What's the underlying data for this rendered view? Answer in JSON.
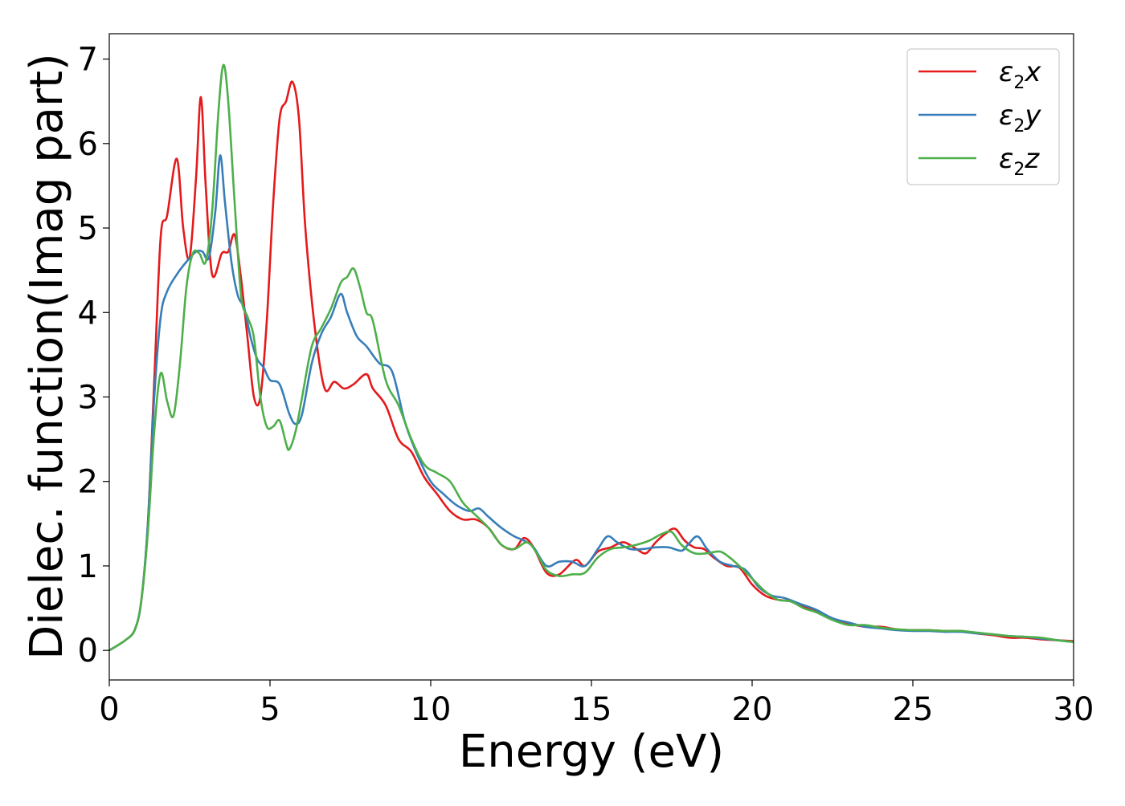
{
  "chart_data": {
    "type": "line",
    "title": "",
    "xlabel": "Energy (eV)",
    "ylabel": "Dielec. function(Imag part)",
    "xlim": [
      0,
      30
    ],
    "ylim": [
      -0.35,
      7.3
    ],
    "xticks": [
      0,
      5,
      10,
      15,
      20,
      25,
      30
    ],
    "yticks": [
      0,
      1,
      2,
      3,
      4,
      5,
      6,
      7
    ],
    "grid": false,
    "legend_position": "top-right",
    "series": [
      {
        "name": "ε2x",
        "legend_main": "ε",
        "legend_sub": "2",
        "legend_suffix": "x",
        "color": "#e41a1c",
        "points": [
          [
            0,
            0
          ],
          [
            0.5,
            0.12
          ],
          [
            0.8,
            0.25
          ],
          [
            1.0,
            0.6
          ],
          [
            1.2,
            1.5
          ],
          [
            1.4,
            3.2
          ],
          [
            1.6,
            4.9
          ],
          [
            1.8,
            5.15
          ],
          [
            2.1,
            5.82
          ],
          [
            2.3,
            5.0
          ],
          [
            2.5,
            4.65
          ],
          [
            2.7,
            5.6
          ],
          [
            2.85,
            6.55
          ],
          [
            3.0,
            5.5
          ],
          [
            3.2,
            4.45
          ],
          [
            3.5,
            4.7
          ],
          [
            3.7,
            4.72
          ],
          [
            3.9,
            4.92
          ],
          [
            4.1,
            4.4
          ],
          [
            4.3,
            3.7
          ],
          [
            4.5,
            3.0
          ],
          [
            4.7,
            3.0
          ],
          [
            4.9,
            3.9
          ],
          [
            5.1,
            5.3
          ],
          [
            5.3,
            6.3
          ],
          [
            5.5,
            6.5
          ],
          [
            5.7,
            6.73
          ],
          [
            5.9,
            6.3
          ],
          [
            6.1,
            5.0
          ],
          [
            6.4,
            3.8
          ],
          [
            6.7,
            3.1
          ],
          [
            7.0,
            3.18
          ],
          [
            7.3,
            3.1
          ],
          [
            7.6,
            3.15
          ],
          [
            8.0,
            3.27
          ],
          [
            8.2,
            3.1
          ],
          [
            8.6,
            2.9
          ],
          [
            9.0,
            2.5
          ],
          [
            9.4,
            2.35
          ],
          [
            9.8,
            2.05
          ],
          [
            10.2,
            1.85
          ],
          [
            10.6,
            1.65
          ],
          [
            11.0,
            1.55
          ],
          [
            11.4,
            1.55
          ],
          [
            11.8,
            1.45
          ],
          [
            12.2,
            1.25
          ],
          [
            12.6,
            1.2
          ],
          [
            12.9,
            1.33
          ],
          [
            13.2,
            1.22
          ],
          [
            13.6,
            0.92
          ],
          [
            14.0,
            0.9
          ],
          [
            14.5,
            1.07
          ],
          [
            14.8,
            1.0
          ],
          [
            15.2,
            1.17
          ],
          [
            15.6,
            1.22
          ],
          [
            16.0,
            1.28
          ],
          [
            16.4,
            1.2
          ],
          [
            16.7,
            1.15
          ],
          [
            17.0,
            1.28
          ],
          [
            17.3,
            1.38
          ],
          [
            17.6,
            1.44
          ],
          [
            17.9,
            1.3
          ],
          [
            18.2,
            1.22
          ],
          [
            18.5,
            1.2
          ],
          [
            18.8,
            1.1
          ],
          [
            19.2,
            1.0
          ],
          [
            19.6,
            0.98
          ],
          [
            20.0,
            0.78
          ],
          [
            20.4,
            0.65
          ],
          [
            20.8,
            0.6
          ],
          [
            21.2,
            0.58
          ],
          [
            21.6,
            0.52
          ],
          [
            22.0,
            0.47
          ],
          [
            22.5,
            0.38
          ],
          [
            23.0,
            0.32
          ],
          [
            23.5,
            0.28
          ],
          [
            24.0,
            0.28
          ],
          [
            24.5,
            0.25
          ],
          [
            25.0,
            0.24
          ],
          [
            25.5,
            0.24
          ],
          [
            26.0,
            0.23
          ],
          [
            26.5,
            0.23
          ],
          [
            27.0,
            0.2
          ],
          [
            27.5,
            0.18
          ],
          [
            28.0,
            0.15
          ],
          [
            28.5,
            0.15
          ],
          [
            29.0,
            0.13
          ],
          [
            29.5,
            0.12
          ],
          [
            30.0,
            0.11
          ]
        ]
      },
      {
        "name": "ε2y",
        "legend_main": "ε",
        "legend_sub": "2",
        "legend_suffix": "y",
        "color": "#377eb8",
        "points": [
          [
            0,
            0
          ],
          [
            0.5,
            0.12
          ],
          [
            0.8,
            0.25
          ],
          [
            1.0,
            0.6
          ],
          [
            1.2,
            1.5
          ],
          [
            1.4,
            3.0
          ],
          [
            1.6,
            3.95
          ],
          [
            1.8,
            4.25
          ],
          [
            2.1,
            4.45
          ],
          [
            2.4,
            4.6
          ],
          [
            2.7,
            4.72
          ],
          [
            2.9,
            4.72
          ],
          [
            3.1,
            4.65
          ],
          [
            3.3,
            5.2
          ],
          [
            3.45,
            5.86
          ],
          [
            3.6,
            5.3
          ],
          [
            3.8,
            4.6
          ],
          [
            4.0,
            4.2
          ],
          [
            4.2,
            4.05
          ],
          [
            4.4,
            3.7
          ],
          [
            4.6,
            3.45
          ],
          [
            4.8,
            3.35
          ],
          [
            5.0,
            3.2
          ],
          [
            5.3,
            3.15
          ],
          [
            5.6,
            2.8
          ],
          [
            5.8,
            2.68
          ],
          [
            6.0,
            2.8
          ],
          [
            6.3,
            3.4
          ],
          [
            6.6,
            3.75
          ],
          [
            6.9,
            3.95
          ],
          [
            7.2,
            4.22
          ],
          [
            7.4,
            4.0
          ],
          [
            7.7,
            3.72
          ],
          [
            8.0,
            3.6
          ],
          [
            8.4,
            3.4
          ],
          [
            8.8,
            3.3
          ],
          [
            9.2,
            2.7
          ],
          [
            9.6,
            2.3
          ],
          [
            10.0,
            2.0
          ],
          [
            10.4,
            1.85
          ],
          [
            10.8,
            1.72
          ],
          [
            11.2,
            1.65
          ],
          [
            11.5,
            1.68
          ],
          [
            11.8,
            1.58
          ],
          [
            12.2,
            1.45
          ],
          [
            12.6,
            1.35
          ],
          [
            12.9,
            1.3
          ],
          [
            13.2,
            1.22
          ],
          [
            13.6,
            1.0
          ],
          [
            14.0,
            1.05
          ],
          [
            14.4,
            1.05
          ],
          [
            14.8,
            1.0
          ],
          [
            15.2,
            1.2
          ],
          [
            15.5,
            1.35
          ],
          [
            15.8,
            1.28
          ],
          [
            16.2,
            1.2
          ],
          [
            16.6,
            1.2
          ],
          [
            17.0,
            1.22
          ],
          [
            17.4,
            1.22
          ],
          [
            17.8,
            1.18
          ],
          [
            18.0,
            1.25
          ],
          [
            18.3,
            1.35
          ],
          [
            18.6,
            1.2
          ],
          [
            19.0,
            1.05
          ],
          [
            19.4,
            1.0
          ],
          [
            19.8,
            0.95
          ],
          [
            20.2,
            0.75
          ],
          [
            20.6,
            0.65
          ],
          [
            21.0,
            0.62
          ],
          [
            21.5,
            0.55
          ],
          [
            22.0,
            0.48
          ],
          [
            22.5,
            0.38
          ],
          [
            23.0,
            0.33
          ],
          [
            23.5,
            0.28
          ],
          [
            24.0,
            0.26
          ],
          [
            24.5,
            0.24
          ],
          [
            25.0,
            0.23
          ],
          [
            25.5,
            0.23
          ],
          [
            26.0,
            0.22
          ],
          [
            26.5,
            0.22
          ],
          [
            27.0,
            0.2
          ],
          [
            27.5,
            0.19
          ],
          [
            28.0,
            0.17
          ],
          [
            28.5,
            0.16
          ],
          [
            29.0,
            0.14
          ],
          [
            29.5,
            0.12
          ],
          [
            30.0,
            0.1
          ]
        ]
      },
      {
        "name": "ε2z",
        "legend_main": "ε",
        "legend_sub": "2",
        "legend_suffix": "z",
        "color": "#4daf4a",
        "points": [
          [
            0,
            0
          ],
          [
            0.5,
            0.12
          ],
          [
            0.8,
            0.25
          ],
          [
            1.0,
            0.6
          ],
          [
            1.2,
            1.4
          ],
          [
            1.4,
            2.6
          ],
          [
            1.6,
            3.28
          ],
          [
            1.8,
            2.95
          ],
          [
            2.0,
            2.78
          ],
          [
            2.2,
            3.4
          ],
          [
            2.4,
            4.3
          ],
          [
            2.6,
            4.7
          ],
          [
            2.8,
            4.7
          ],
          [
            3.0,
            4.6
          ],
          [
            3.2,
            5.2
          ],
          [
            3.4,
            6.4
          ],
          [
            3.55,
            6.93
          ],
          [
            3.7,
            6.5
          ],
          [
            3.9,
            5.3
          ],
          [
            4.1,
            4.2
          ],
          [
            4.3,
            3.95
          ],
          [
            4.5,
            3.7
          ],
          [
            4.7,
            3.0
          ],
          [
            4.9,
            2.65
          ],
          [
            5.1,
            2.65
          ],
          [
            5.3,
            2.72
          ],
          [
            5.5,
            2.45
          ],
          [
            5.6,
            2.38
          ],
          [
            5.8,
            2.6
          ],
          [
            6.0,
            3.0
          ],
          [
            6.3,
            3.6
          ],
          [
            6.6,
            3.82
          ],
          [
            6.9,
            4.05
          ],
          [
            7.2,
            4.35
          ],
          [
            7.4,
            4.42
          ],
          [
            7.6,
            4.52
          ],
          [
            7.8,
            4.3
          ],
          [
            8.0,
            4.0
          ],
          [
            8.2,
            3.9
          ],
          [
            8.6,
            3.2
          ],
          [
            9.0,
            2.9
          ],
          [
            9.4,
            2.5
          ],
          [
            9.8,
            2.2
          ],
          [
            10.2,
            2.1
          ],
          [
            10.6,
            2.0
          ],
          [
            11.0,
            1.75
          ],
          [
            11.4,
            1.6
          ],
          [
            11.8,
            1.45
          ],
          [
            12.2,
            1.25
          ],
          [
            12.6,
            1.2
          ],
          [
            13.0,
            1.28
          ],
          [
            13.3,
            1.15
          ],
          [
            13.6,
            0.95
          ],
          [
            14.0,
            0.88
          ],
          [
            14.4,
            0.9
          ],
          [
            14.8,
            0.92
          ],
          [
            15.2,
            1.1
          ],
          [
            15.6,
            1.2
          ],
          [
            16.0,
            1.22
          ],
          [
            16.4,
            1.25
          ],
          [
            16.8,
            1.3
          ],
          [
            17.2,
            1.38
          ],
          [
            17.5,
            1.4
          ],
          [
            17.8,
            1.25
          ],
          [
            18.2,
            1.15
          ],
          [
            18.6,
            1.15
          ],
          [
            19.0,
            1.17
          ],
          [
            19.3,
            1.1
          ],
          [
            19.6,
            1.0
          ],
          [
            20.0,
            0.85
          ],
          [
            20.4,
            0.7
          ],
          [
            20.8,
            0.6
          ],
          [
            21.2,
            0.58
          ],
          [
            21.6,
            0.5
          ],
          [
            22.0,
            0.45
          ],
          [
            22.5,
            0.36
          ],
          [
            23.0,
            0.3
          ],
          [
            23.5,
            0.3
          ],
          [
            24.0,
            0.27
          ],
          [
            24.5,
            0.25
          ],
          [
            25.0,
            0.24
          ],
          [
            25.5,
            0.24
          ],
          [
            26.0,
            0.23
          ],
          [
            26.5,
            0.23
          ],
          [
            27.0,
            0.21
          ],
          [
            27.5,
            0.19
          ],
          [
            28.0,
            0.17
          ],
          [
            28.5,
            0.16
          ],
          [
            29.0,
            0.15
          ],
          [
            29.5,
            0.12
          ],
          [
            30.0,
            0.1
          ]
        ]
      }
    ]
  }
}
